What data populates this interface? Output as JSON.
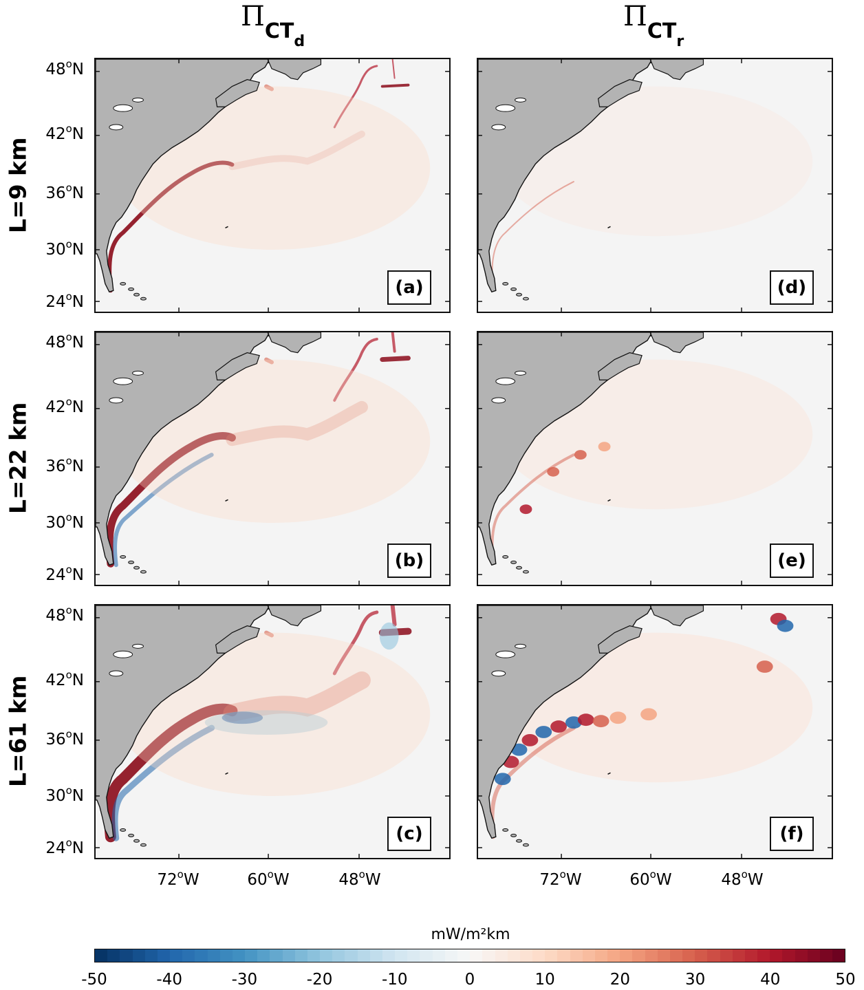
{
  "column_titles": [
    {
      "symbol": "Π",
      "sub": "CT",
      "subsub": "d"
    },
    {
      "symbol": "Π",
      "sub": "CT",
      "subsub": "r"
    }
  ],
  "row_titles": [
    "L=9 km",
    "L=22 km",
    "L=61 km"
  ],
  "panels": [
    {
      "label": "(a)",
      "column": 0,
      "row": 0
    },
    {
      "label": "(b)",
      "column": 0,
      "row": 1
    },
    {
      "label": "(c)",
      "column": 0,
      "row": 2
    },
    {
      "label": "(d)",
      "column": 1,
      "row": 0
    },
    {
      "label": "(e)",
      "column": 1,
      "row": 1
    },
    {
      "label": "(f)",
      "column": 1,
      "row": 2
    }
  ],
  "lat_ticks": [
    {
      "deg": "48",
      "unit": "o",
      "hemi": "N"
    },
    {
      "deg": "42",
      "unit": "o",
      "hemi": "N"
    },
    {
      "deg": "36",
      "unit": "o",
      "hemi": "N"
    },
    {
      "deg": "30",
      "unit": "o",
      "hemi": "N"
    },
    {
      "deg": "24",
      "unit": "o",
      "hemi": "N"
    }
  ],
  "lon_ticks": [
    {
      "deg": "72",
      "unit": "o",
      "hemi": "W"
    },
    {
      "deg": "60",
      "unit": "o",
      "hemi": "W"
    },
    {
      "deg": "48",
      "unit": "o",
      "hemi": "W"
    }
  ],
  "colorbar": {
    "title": "mW/m²km",
    "ticks": [
      "-50",
      "-40",
      "-30",
      "-20",
      "-10",
      "0",
      "10",
      "20",
      "30",
      "40",
      "50"
    ],
    "range": [
      -50,
      50
    ],
    "colors": {
      "negative": "#053061",
      "mid": "#f7f7f7",
      "positive": "#67001f"
    }
  },
  "colors": {
    "land": "#b3b3b3",
    "ocean": "#f4f4f4",
    "coast": "#111111"
  }
}
